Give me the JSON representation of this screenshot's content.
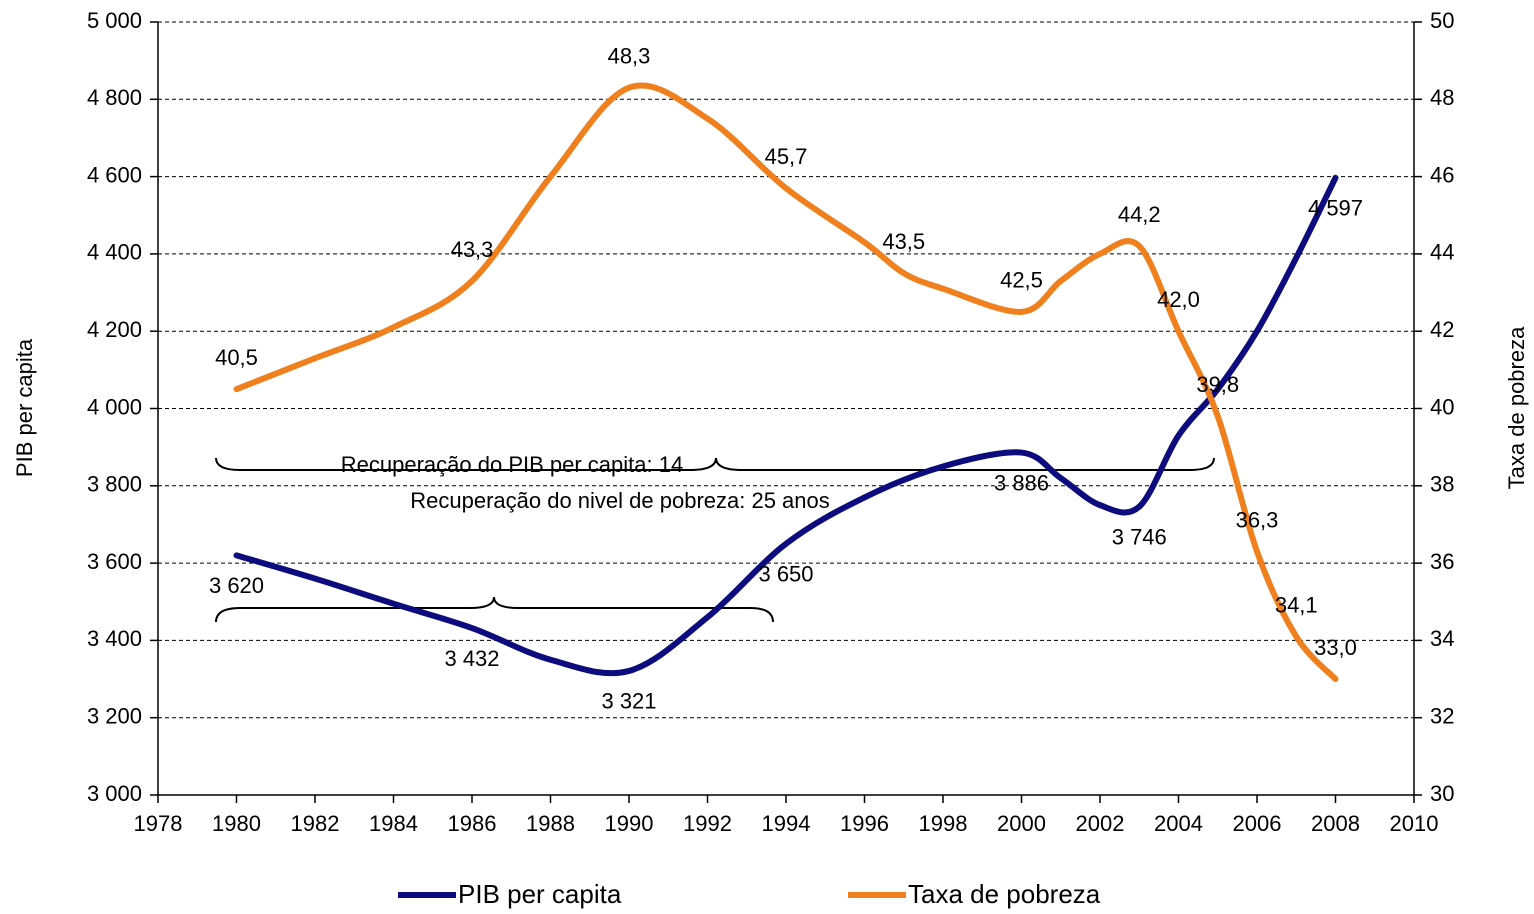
{
  "chart_data": {
    "type": "line",
    "xlim": [
      1978,
      2010
    ],
    "xticks": [
      1978,
      1980,
      1982,
      1984,
      1986,
      1988,
      1990,
      1992,
      1994,
      1996,
      1998,
      2000,
      2002,
      2004,
      2006,
      2008,
      2010
    ],
    "ylim": [
      3000,
      5000
    ],
    "yticks": [
      {
        "value": 3000,
        "label": "3 000"
      },
      {
        "value": 3200,
        "label": "3 200"
      },
      {
        "value": 3400,
        "label": "3 400"
      },
      {
        "value": 3600,
        "label": "3 600"
      },
      {
        "value": 3800,
        "label": "3 800"
      },
      {
        "value": 4000,
        "label": "4 000"
      },
      {
        "value": 4200,
        "label": "4 200"
      },
      {
        "value": 4400,
        "label": "4 400"
      },
      {
        "value": 4600,
        "label": "4 600"
      },
      {
        "value": 4800,
        "label": "4 800"
      },
      {
        "value": 5000,
        "label": "5 000"
      }
    ],
    "y2lim": [
      30,
      50
    ],
    "y2ticks": [
      30,
      32,
      34,
      36,
      38,
      40,
      42,
      44,
      46,
      48,
      50
    ],
    "ylabel": "PIB per capita",
    "y2label": "Taxa de pobreza",
    "grid": true,
    "legend": "bottom",
    "annotations": [
      "Recuperação do nivel de pobreza: 25 anos",
      "Recuperação do PIB per capita: 14"
    ],
    "series": [
      {
        "name": "PIB per capita",
        "color": "#0c0c7e",
        "axis": "y",
        "x": [
          1980,
          1982,
          1984,
          1986,
          1988,
          1990,
          1992,
          1994,
          1996,
          1998,
          2000,
          2001,
          2002,
          2003,
          2004,
          2005,
          2006,
          2007,
          2008
        ],
        "values": [
          3620,
          3560,
          3495,
          3432,
          3350,
          3321,
          3460,
          3650,
          3770,
          3850,
          3886,
          3820,
          3750,
          3746,
          3930,
          4050,
          4200,
          4390,
          4597
        ],
        "value_labels": [
          "3 620",
          null,
          null,
          "3 432",
          null,
          "3 321",
          null,
          "3 650",
          null,
          null,
          "3 886",
          null,
          null,
          "3 746",
          null,
          null,
          null,
          null,
          "4 597"
        ]
      },
      {
        "name": "Taxa de pobreza",
        "color": "#f07f1e",
        "axis": "y2",
        "x": [
          1980,
          1982,
          1984,
          1986,
          1988,
          1990,
          1992,
          1994,
          1996,
          1997,
          1998,
          2000,
          2001,
          2002,
          2003,
          2004,
          2005,
          2006,
          2007,
          2008
        ],
        "values": [
          40.5,
          41.3,
          42.1,
          43.3,
          46.0,
          48.3,
          47.5,
          45.7,
          44.3,
          43.5,
          43.1,
          42.5,
          43.3,
          44.0,
          44.2,
          42.0,
          39.8,
          36.3,
          34.1,
          33.0
        ],
        "value_labels": [
          "40,5",
          null,
          null,
          "43,3",
          null,
          "48,3",
          null,
          "45,7",
          null,
          "43,5",
          null,
          "42,5",
          null,
          null,
          "44,2",
          "42,0",
          "39,8",
          "36,3",
          "34,1",
          "33,0"
        ]
      }
    ]
  }
}
